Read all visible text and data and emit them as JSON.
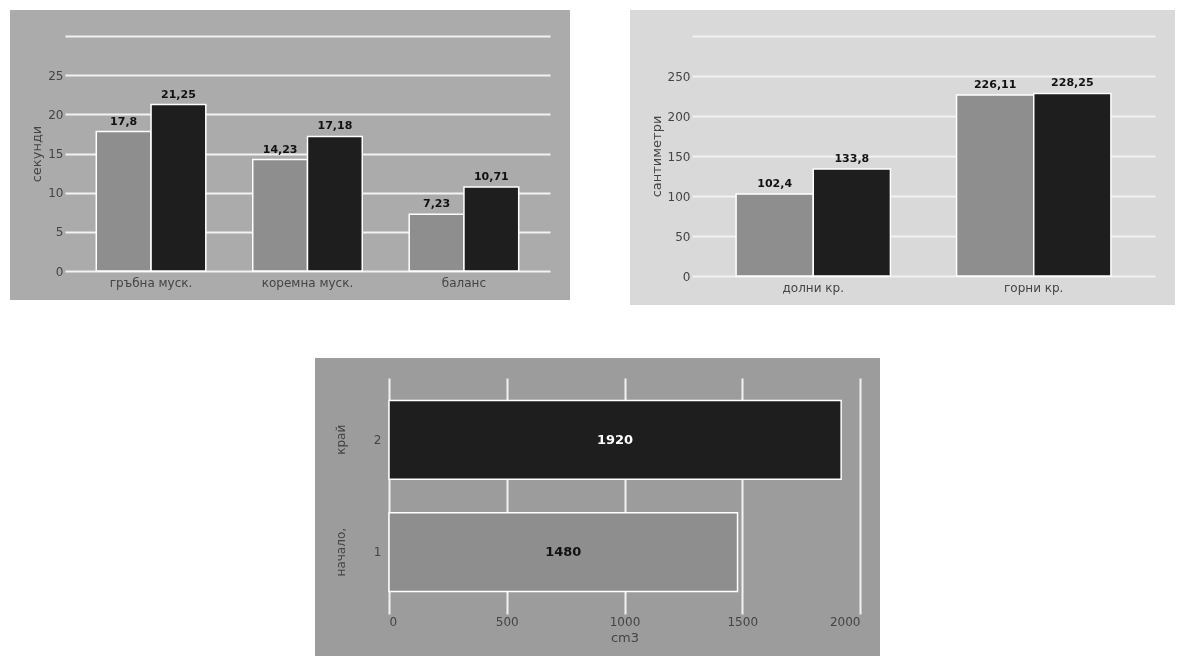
{
  "chart_data": [
    {
      "type": "bar",
      "ylabel": "секунди",
      "categories": [
        "гръбна муск.",
        "коремна муск.",
        "баланс"
      ],
      "series": [
        {
          "color": "#8e8e8e",
          "values": [
            17.8,
            14.23,
            7.23
          ],
          "value_labels": [
            "17,8",
            "14,23",
            "7,23"
          ]
        },
        {
          "color": "#1e1e1e",
          "values": [
            21.25,
            17.18,
            10.71
          ],
          "value_labels": [
            "21,25",
            "17,18",
            "10,71"
          ]
        }
      ],
      "ylim": [
        0,
        30
      ],
      "yticks": [
        0,
        5,
        10,
        15,
        20,
        25,
        {
          "value": 30,
          "label": null
        }
      ],
      "grid": "y"
    },
    {
      "type": "bar",
      "ylabel": "сантиметри",
      "categories": [
        "долни кр.",
        "горни кр."
      ],
      "series": [
        {
          "color": "#8e8e8e",
          "values": [
            102.4,
            226.11
          ],
          "value_labels": [
            "102,4",
            "226,11"
          ]
        },
        {
          "color": "#1e1e1e",
          "values": [
            133.8,
            228.25
          ],
          "value_labels": [
            "133,8",
            "228,25"
          ]
        }
      ],
      "ylim": [
        0,
        300
      ],
      "yticks": [
        0,
        50,
        100,
        150,
        200,
        250,
        {
          "value": 300,
          "label": null
        }
      ],
      "grid": "y"
    },
    {
      "type": "bar",
      "orientation": "horizontal",
      "xlabel": "cm3",
      "categories": [
        "2",
        "1"
      ],
      "values": [
        1920,
        1480
      ],
      "colors": [
        "#1e1e1e",
        "#8e8e8e"
      ],
      "data_labels": true,
      "xlim": [
        0,
        2000
      ],
      "xticks": [
        0,
        500,
        1000,
        1500,
        2000
      ],
      "grid": "x",
      "annotations": [
        "край",
        "начало,"
      ]
    }
  ]
}
